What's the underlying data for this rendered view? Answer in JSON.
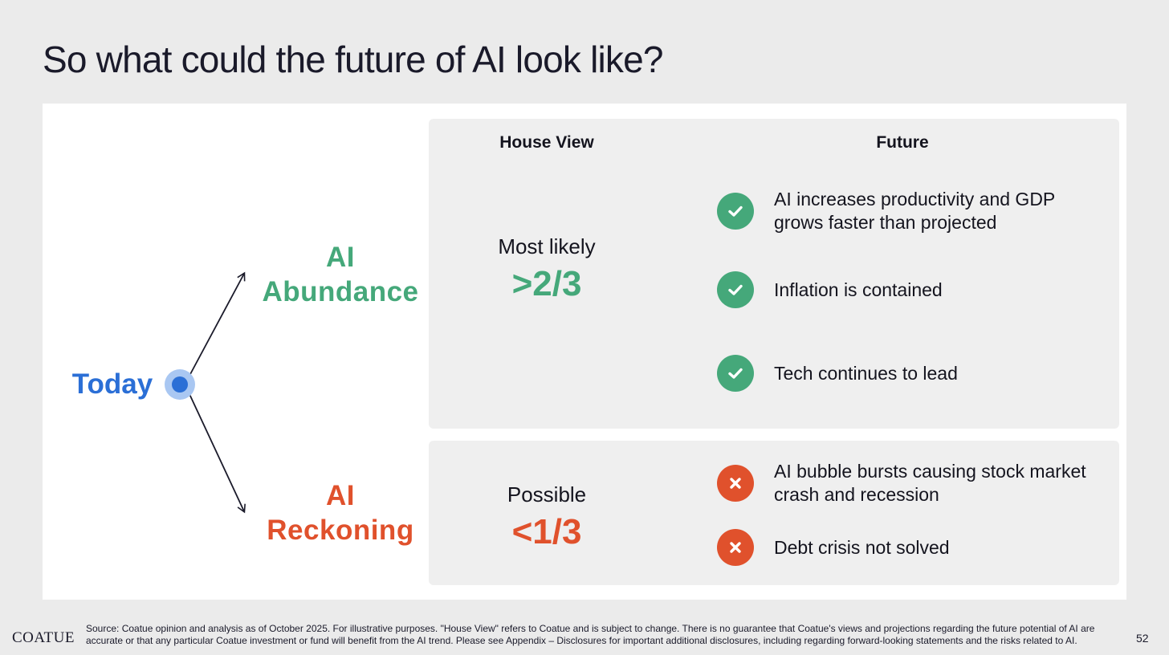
{
  "slide": {
    "title": "So what could the future of AI look like?"
  },
  "diagram": {
    "origin_label": "Today",
    "columns": {
      "house_view": "House View",
      "future": "Future"
    },
    "scenarios": [
      {
        "name": "AI Abundance",
        "name_lines": [
          "AI",
          "Abundance"
        ],
        "likelihood_label": "Most likely",
        "likelihood_value": ">2/3",
        "color": "#45a87a",
        "outcomes": [
          {
            "icon": "check-icon",
            "text": "AI increases productivity and GDP grows faster than projected"
          },
          {
            "icon": "check-icon",
            "text": "Inflation is contained"
          },
          {
            "icon": "check-icon",
            "text": "Tech continues to lead"
          }
        ]
      },
      {
        "name": "AI Reckoning",
        "name_lines": [
          "AI",
          "Reckoning"
        ],
        "likelihood_label": "Possible",
        "likelihood_value": "<1/3",
        "color": "#e0512c",
        "outcomes": [
          {
            "icon": "x-icon",
            "text": "AI bubble bursts causing stock market crash and recession"
          },
          {
            "icon": "x-icon",
            "text": "Debt crisis not solved"
          }
        ]
      }
    ],
    "origin_color": "#2b6fd6"
  },
  "footer": {
    "logo": "COATUE",
    "note": "Source: Coatue opinion and analysis as of October 2025. For illustrative purposes. \"House View\" refers to Coatue and is subject to change. There is no guarantee that Coatue's views and projections regarding the future potential of AI are accurate or that any particular Coatue investment or fund will benefit from the AI trend.  Please see Appendix – Disclosures for important additional disclosures, including regarding forward-looking statements and the risks related to AI.",
    "page_number": "52"
  }
}
